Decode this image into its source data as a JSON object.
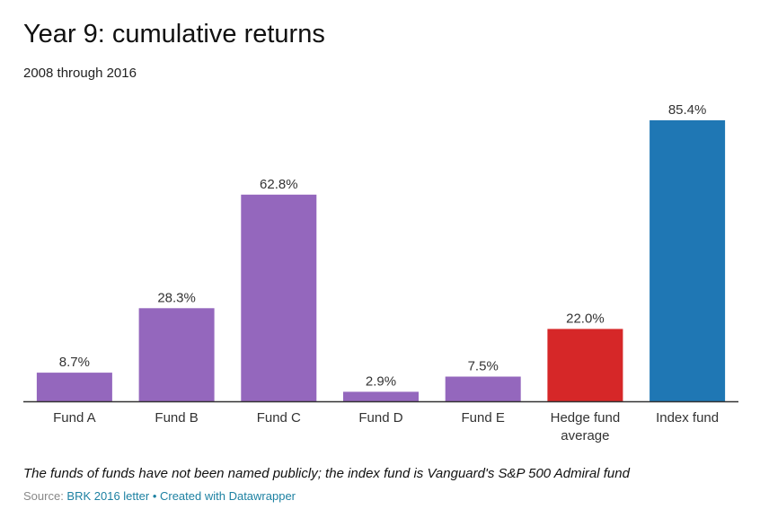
{
  "header": {
    "title": "Year 9: cumulative returns",
    "subtitle": "2008 through 2016"
  },
  "footer": {
    "note": "The funds of funds have not been named publicly; the index fund is Vanguard's S&P 500 Admiral fund",
    "source_prefix": "Source: ",
    "source_link": "BRK 2016 letter",
    "separator": " • ",
    "credit_link": "Created with Datawrapper"
  },
  "colors": {
    "fund": "#9467bd",
    "hedge": "#d62728",
    "index": "#1f77b4",
    "axis": "#333333"
  },
  "chart_data": {
    "type": "bar",
    "title": "Year 9: cumulative returns",
    "subtitle": "2008 through 2016",
    "xlabel": "",
    "ylabel": "",
    "ylim": [
      0,
      85.4
    ],
    "grid": false,
    "categories": [
      [
        "Fund A"
      ],
      [
        "Fund B"
      ],
      [
        "Fund C"
      ],
      [
        "Fund D"
      ],
      [
        "Fund E"
      ],
      [
        "Hedge fund",
        "average"
      ],
      [
        "Index fund"
      ]
    ],
    "values": [
      8.7,
      28.3,
      62.8,
      2.9,
      7.5,
      22.0,
      85.4
    ],
    "value_labels": [
      "8.7%",
      "28.3%",
      "62.8%",
      "2.9%",
      "7.5%",
      "22.0%",
      "85.4%"
    ],
    "bar_colors": [
      "fund",
      "fund",
      "fund",
      "fund",
      "fund",
      "hedge",
      "index"
    ]
  }
}
